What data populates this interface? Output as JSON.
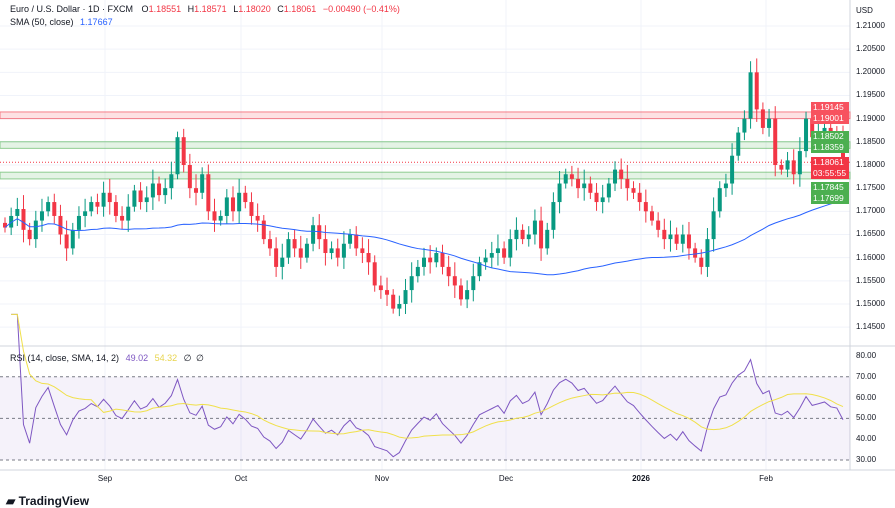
{
  "header": {
    "symbol": "Euro / U.S. Dollar · 1D · FXCM",
    "open_label": "O",
    "open": "1.18551",
    "high_label": "H",
    "high": "1.18571",
    "low_label": "L",
    "low": "1.18020",
    "close_label": "C",
    "close": "1.18061",
    "change": "−0.00490 (−0.41%)",
    "currency": "USD"
  },
  "sma": {
    "label": "SMA (50, close)",
    "value": "1.17667"
  },
  "rsi": {
    "label": "RSI (14, close, SMA, 14, 2)",
    "value": "49.02",
    "sma_value": "54.32",
    "extra1": "∅",
    "extra2": "∅"
  },
  "price_axis": [
    "1.21000",
    "1.20500",
    "1.20000",
    "1.19500",
    "1.19000",
    "1.18500",
    "1.18000",
    "1.17500",
    "1.17000",
    "1.16500",
    "1.16000",
    "1.15500",
    "1.15000",
    "1.14500"
  ],
  "rsi_axis": [
    "80.00",
    "70.00",
    "60.00",
    "50.00",
    "40.00",
    "30.00"
  ],
  "price_tags": [
    {
      "value": "1.19145",
      "color": "#f7525f"
    },
    {
      "value": "1.19001",
      "color": "#f7525f"
    },
    {
      "value": "1.18502",
      "color": "#4caf50"
    },
    {
      "value": "1.18359",
      "color": "#4caf50"
    },
    {
      "value": "1.18061",
      "color": "#f23645"
    },
    {
      "value": "03:55:55",
      "color": "#f23645"
    },
    {
      "value": "1.17845",
      "color": "#4caf50"
    },
    {
      "value": "1.17699",
      "color": "#4caf50"
    }
  ],
  "time_axis": [
    "Sep",
    "Oct",
    "Nov",
    "Dec",
    "2026",
    "Feb"
  ],
  "logo": "TradingView",
  "colors": {
    "up": "#089981",
    "down": "#f23645",
    "sma": "#2962ff",
    "rsi": "#7e57c2",
    "rsi_sma": "#f0e04a"
  },
  "chart_data": {
    "type": "candlestick",
    "ylim": [
      1.143,
      1.213
    ],
    "zones": [
      {
        "from": 1.19001,
        "to": 1.19145,
        "color": "#f23645"
      },
      {
        "from": 1.18359,
        "to": 1.18502,
        "color": "#4caf50"
      },
      {
        "from": 1.17699,
        "to": 1.17845,
        "color": "#4caf50"
      }
    ],
    "closes": [
      1.1665,
      1.169,
      1.1705,
      1.166,
      1.164,
      1.168,
      1.17,
      1.172,
      1.169,
      1.165,
      1.162,
      1.166,
      1.169,
      1.17,
      1.172,
      1.171,
      1.174,
      1.172,
      1.169,
      1.168,
      1.171,
      1.1745,
      1.172,
      1.173,
      1.176,
      1.1735,
      1.175,
      1.178,
      1.186,
      1.18,
      1.175,
      1.174,
      1.178,
      1.17,
      1.168,
      1.169,
      1.173,
      1.17,
      1.174,
      1.172,
      1.169,
      1.168,
      1.164,
      1.162,
      1.158,
      1.16,
      1.164,
      1.162,
      1.16,
      1.163,
      1.167,
      1.164,
      1.161,
      1.162,
      1.16,
      1.163,
      1.165,
      1.162,
      1.161,
      1.159,
      1.154,
      1.153,
      1.152,
      1.149,
      1.15,
      1.153,
      1.156,
      1.158,
      1.16,
      1.159,
      1.161,
      1.158,
      1.156,
      1.154,
      1.151,
      1.153,
      1.156,
      1.159,
      1.16,
      1.161,
      1.162,
      1.16,
      1.164,
      1.166,
      1.164,
      1.165,
      1.168,
      1.162,
      1.166,
      1.172,
      1.176,
      1.178,
      1.177,
      1.175,
      1.176,
      1.174,
      1.172,
      1.173,
      1.176,
      1.179,
      1.177,
      1.175,
      1.174,
      1.172,
      1.17,
      1.168,
      1.166,
      1.164,
      1.165,
      1.163,
      1.165,
      1.162,
      1.16,
      1.158,
      1.164,
      1.17,
      1.175,
      1.176,
      1.182,
      1.187,
      1.19,
      1.2,
      1.192,
      1.188,
      1.19,
      1.18,
      1.179,
      1.181,
      1.178,
      1.183,
      1.19,
      1.186,
      1.187,
      1.188,
      1.186,
      1.1855,
      1.1806
    ],
    "rsi_ylim": [
      25,
      82
    ],
    "rsi_levels": [
      70,
      50,
      30
    ]
  }
}
